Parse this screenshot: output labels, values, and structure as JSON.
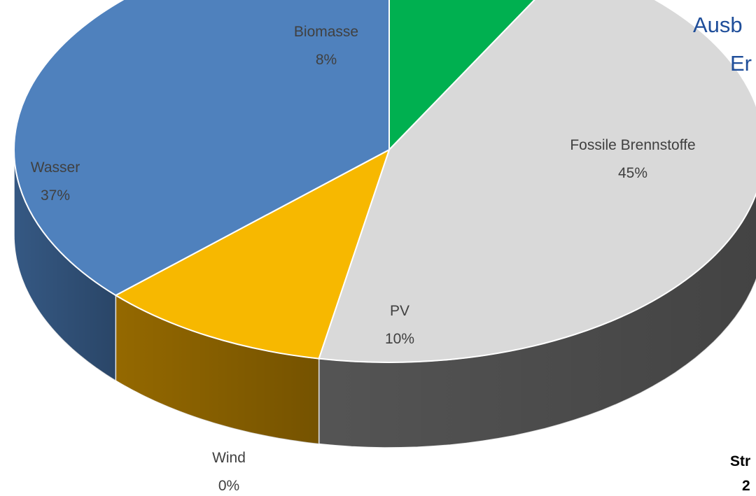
{
  "title_fragments": [
    "Ausb",
    "Er"
  ],
  "note_fragments": [
    "Str",
    "2"
  ],
  "chart_data": {
    "type": "pie",
    "style": "3d",
    "unit": "%",
    "slices": [
      {
        "label": "Biomasse",
        "value": 8,
        "display": "8%",
        "color": "#00b050",
        "side_color": "#00843c"
      },
      {
        "label": "Fossile Brennstoffe",
        "value": 45,
        "display": "45%",
        "color": "#d9d9d9",
        "side_color": "#595959"
      },
      {
        "label": "PV",
        "value": 10,
        "display": "10%",
        "color": "#f7b800",
        "side_color": "#9c6e00"
      },
      {
        "label": "Wind",
        "value": 0,
        "display": "0%",
        "color": "#7f7f7f",
        "side_color": "#5a5a5a"
      },
      {
        "label": "Wasser",
        "value": 37,
        "display": "37%",
        "color": "#4f81bd",
        "side_color": "#385d8a"
      }
    ]
  }
}
